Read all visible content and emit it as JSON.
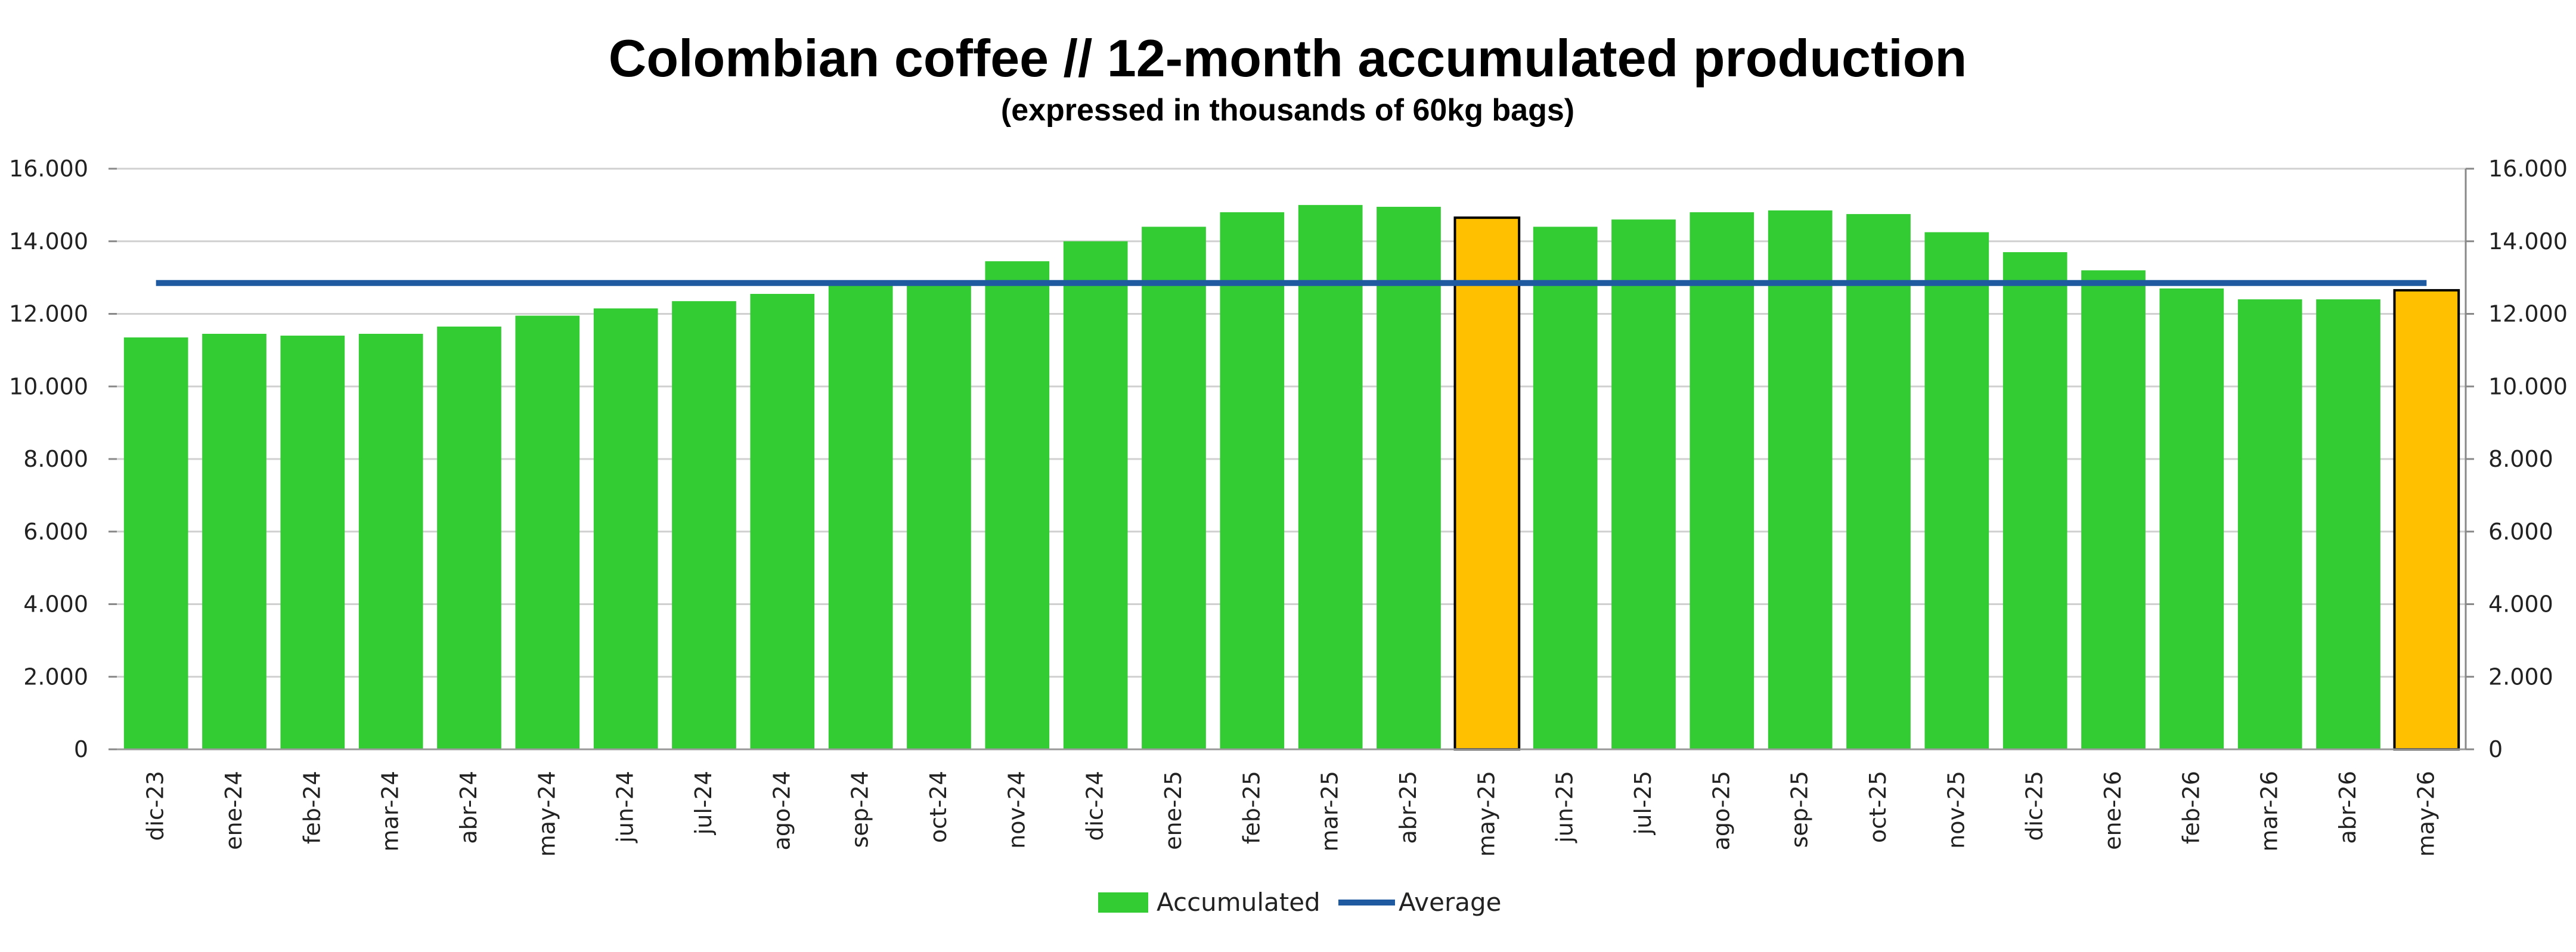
{
  "chart_data": {
    "type": "bar",
    "title": "Colombian coffee // 12-month accumulated production",
    "subtitle": "(expressed in thousands of 60kg bags)",
    "categories": [
      "dic-23",
      "ene-24",
      "feb-24",
      "mar-24",
      "abr-24",
      "may-24",
      "jun-24",
      "jul-24",
      "ago-24",
      "sep-24",
      "oct-24",
      "nov-24",
      "dic-24",
      "ene-25",
      "feb-25",
      "mar-25",
      "abr-25",
      "may-25",
      "jun-25",
      "jul-25",
      "ago-25",
      "sep-25",
      "oct-25",
      "nov-25",
      "dic-25",
      "ene-26",
      "feb-26",
      "mar-26",
      "abr-26",
      "may-26"
    ],
    "series": [
      {
        "name": "Accumulated",
        "type": "bar",
        "color": "#33cc33",
        "values": [
          11350,
          11450,
          11400,
          11450,
          11650,
          11950,
          12150,
          12350,
          12550,
          12800,
          12850,
          13450,
          14000,
          14400,
          14800,
          15000,
          14950,
          14650,
          14400,
          14600,
          14800,
          14850,
          14750,
          14250,
          13700,
          13200,
          12700,
          12400,
          12400,
          12650
        ]
      },
      {
        "name": "Average",
        "type": "line",
        "color": "#1f5aa0",
        "value": 12850
      }
    ],
    "highlight_categories": [
      "may-25",
      "may-26"
    ],
    "highlight_color": "#ffc000",
    "y_ticks": [
      "0",
      "2.000",
      "4.000",
      "6.000",
      "8.000",
      "10.000",
      "12.000",
      "14.000",
      "16.000"
    ],
    "ylim": [
      0,
      16000
    ],
    "y_tick_step": 2000,
    "grid": true,
    "secondary_y_axis": true,
    "legend_position": "bottom-center",
    "xlabel": "",
    "ylabel": ""
  }
}
